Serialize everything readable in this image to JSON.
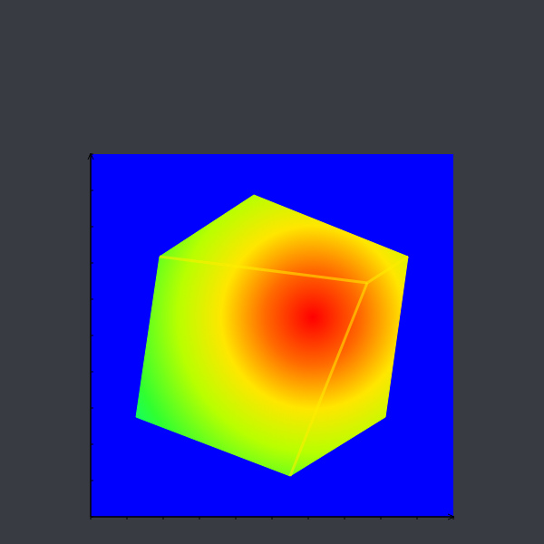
{
  "chart_data": {
    "type": "image",
    "xlim": [
      0,
      10
    ],
    "ylim": [
      0,
      10
    ],
    "xticks": [
      0,
      1,
      2,
      3,
      4,
      5,
      6,
      7,
      8,
      9,
      10
    ],
    "yticks": [
      0,
      1,
      2,
      3,
      4,
      5,
      6,
      7,
      8,
      9,
      10
    ],
    "tick_labels": false
  }
}
